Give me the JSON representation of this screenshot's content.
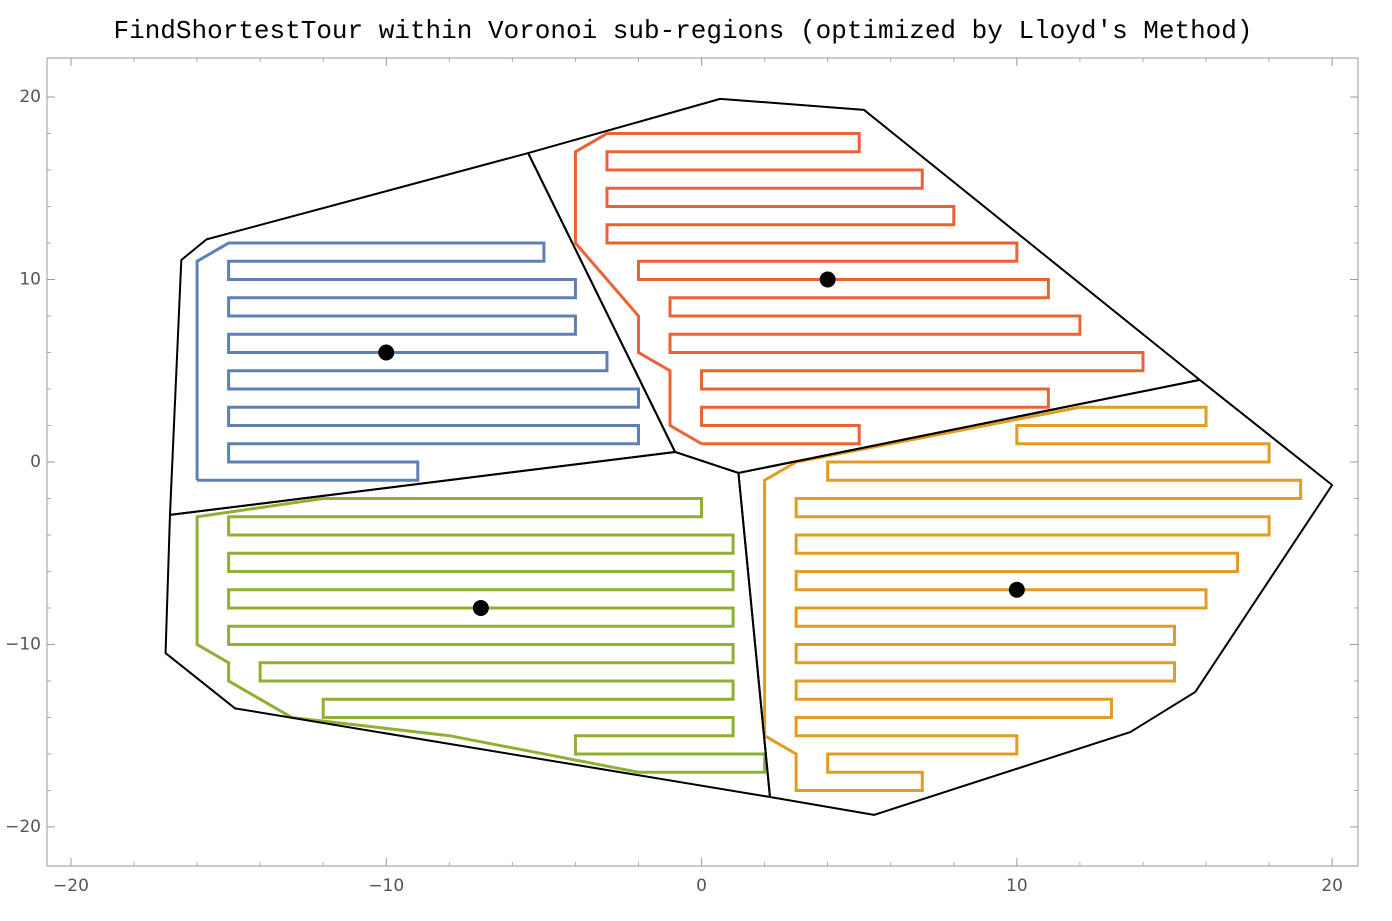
{
  "chart_data": {
    "type": "tour",
    "title": "FindShortestTour within Voronoi sub-regions (optimized by Lloyd's Method)",
    "xlim": [
      -20.76,
      20.82
    ],
    "ylim": [
      -22.14,
      22.14
    ],
    "xticks": [
      {
        "value": -20,
        "label": "−20"
      },
      {
        "value": -10,
        "label": "−10"
      },
      0,
      10,
      20
    ],
    "yticks": [
      {
        "value": -20,
        "label": "−20"
      },
      {
        "value": -10,
        "label": "−10"
      },
      0,
      10,
      20
    ],
    "xminorticks": [
      -18,
      -16,
      -14,
      -12,
      -8,
      -6,
      -4,
      -2,
      2,
      4,
      6,
      8,
      12,
      14,
      16,
      18
    ],
    "yminorticks": [
      -18,
      -16,
      -14,
      -12,
      -8,
      -6,
      -4,
      -2,
      2,
      4,
      6,
      8,
      12,
      14,
      16,
      18
    ],
    "series": [
      {
        "color": "#5e81b5",
        "tour_x": [
          -16,
          -9,
          -9,
          -15,
          -15,
          -2,
          -2,
          -15,
          -15,
          -2,
          -2,
          -15,
          -15,
          -3,
          -3,
          -15,
          -15,
          -4,
          -4,
          -15,
          -15,
          -4,
          -4,
          -15,
          -15,
          -5,
          -5,
          -15,
          -16,
          -16
        ],
        "tour_y": [
          -1,
          -1,
          0,
          0,
          1,
          1,
          2,
          2,
          3,
          3,
          4,
          4,
          5,
          5,
          6,
          6,
          7,
          7,
          8,
          8,
          9,
          9,
          10,
          10,
          11,
          11,
          12,
          12,
          11,
          -1
        ],
        "boundary_x": [
          -16.86,
          -16.5,
          -15.7,
          -5.5,
          -0.84
        ],
        "boundary_y": [
          -2.9,
          11.07,
          12.2,
          16.93,
          0.55
        ],
        "center_x": -10,
        "center_y": 6
      },
      {
        "color": "#eb6235",
        "tour_x": [
          0,
          5,
          5,
          0,
          0,
          11,
          11,
          0,
          0,
          14,
          14,
          -1,
          -1,
          12,
          12,
          -1,
          -1,
          11,
          11,
          -2,
          -2,
          10,
          10,
          -3,
          -3,
          8,
          8,
          -3,
          -3,
          7,
          7,
          -3,
          -3,
          5,
          5,
          -3,
          -4,
          -4,
          -3,
          -2,
          -2,
          -1,
          -1,
          0
        ],
        "tour_y": [
          1,
          1,
          2,
          2,
          3,
          3,
          4,
          4,
          5,
          5,
          6,
          6,
          7,
          7,
          8,
          8,
          9,
          9,
          10,
          10,
          11,
          11,
          12,
          12,
          13,
          13,
          14,
          14,
          15,
          15,
          16,
          16,
          17,
          17,
          18,
          18,
          17,
          12,
          10,
          8,
          6,
          5,
          2,
          1
        ],
        "boundary_x": [
          -5.5,
          0.59,
          5.15,
          15.8,
          1.17,
          -0.84
        ],
        "boundary_y": [
          16.93,
          19.9,
          19.3,
          4.5,
          -0.6,
          0.55
        ],
        "center_x": 4,
        "center_y": 10
      },
      {
        "color": "#e19c24",
        "tour_x": [
          12,
          16,
          16,
          10,
          10,
          18,
          18,
          4,
          4,
          19,
          19,
          3,
          3,
          18,
          18,
          3,
          3,
          17,
          17,
          3,
          3,
          16,
          16,
          3,
          3,
          15,
          15,
          3,
          3,
          15,
          15,
          3,
          3,
          13,
          13,
          3,
          3,
          10,
          10,
          4,
          4,
          7,
          7,
          3,
          3,
          2,
          2,
          3,
          6,
          9,
          12
        ],
        "tour_y": [
          3,
          3,
          2,
          2,
          1,
          1,
          0,
          0,
          -1,
          -1,
          -2,
          -2,
          -3,
          -3,
          -4,
          -4,
          -5,
          -5,
          -6,
          -6,
          -7,
          -7,
          -8,
          -8,
          -9,
          -9,
          -10,
          -10,
          -11,
          -11,
          -12,
          -12,
          -13,
          -13,
          -14,
          -14,
          -15,
          -15,
          -16,
          -16,
          -17,
          -17,
          -18,
          -18,
          -16,
          -15,
          -1,
          0,
          1,
          2,
          3
        ],
        "boundary_x": [
          1.17,
          15.8,
          20,
          15.66,
          13.6,
          5.47,
          2.17
        ],
        "boundary_y": [
          -0.6,
          4.5,
          -1.26,
          -12.6,
          -14.8,
          -19.34,
          -18.36
        ],
        "center_x": 10,
        "center_y": -7
      },
      {
        "color": "#8fb032",
        "tour_x": [
          -12,
          0,
          0,
          -15,
          -15,
          1,
          1,
          -15,
          -15,
          1,
          1,
          -15,
          -15,
          1,
          1,
          -15,
          -15,
          1,
          1,
          -14,
          -14,
          1,
          1,
          -12,
          -12,
          1,
          1,
          -4,
          -4,
          2,
          2,
          -2,
          -5,
          -8,
          -13,
          -14,
          -15,
          -15,
          -16,
          -16,
          -12
        ],
        "tour_y": [
          -2,
          -2,
          -3,
          -3,
          -4,
          -4,
          -5,
          -5,
          -6,
          -6,
          -7,
          -7,
          -8,
          -8,
          -9,
          -9,
          -10,
          -10,
          -11,
          -11,
          -12,
          -12,
          -13,
          -13,
          -14,
          -14,
          -15,
          -15,
          -16,
          -16,
          -17,
          -17,
          -16,
          -15,
          -14,
          -13,
          -12,
          -11,
          -10,
          -3,
          -2
        ],
        "boundary_x": [
          -0.84,
          1.17,
          2.17,
          -14.8,
          -17,
          -16.86
        ],
        "boundary_y": [
          0.55,
          -0.6,
          -18.36,
          -13.5,
          -10.47,
          -2.9
        ],
        "center_x": -7,
        "center_y": -8
      }
    ]
  }
}
